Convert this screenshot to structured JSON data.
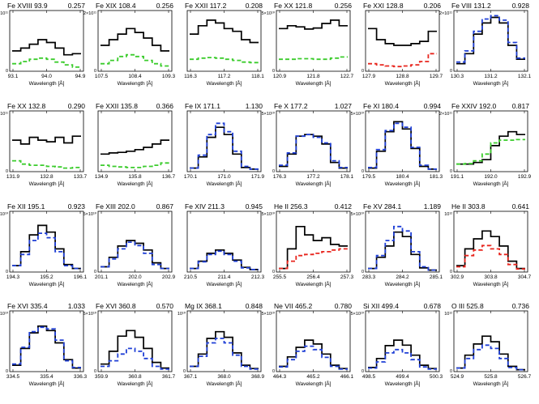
{
  "colors": {
    "model": "#000000",
    "obs_blue": "#1f3fd6",
    "obs_green": "#3bcc2c",
    "obs_red": "#e8261e"
  },
  "chart_data": [
    {
      "type": "line",
      "title": "Fe XVIII  93.9",
      "ratio": "0.257",
      "xticks": [
        "93.1",
        "94.0",
        "94.9"
      ],
      "xlabel": "Wavelength [Å]",
      "ytop": "5×10¹¹",
      "ybot": "0",
      "series": [
        {
          "role": "model",
          "color": "#000000",
          "values": [
            0.35,
            0.4,
            0.47,
            0.55,
            0.5,
            0.4,
            0.28,
            0.3
          ]
        },
        {
          "role": "obs",
          "color": "#3bcc2c",
          "values": [
            0.12,
            0.16,
            0.2,
            0.22,
            0.2,
            0.15,
            0.1,
            0.06
          ]
        }
      ]
    },
    {
      "type": "line",
      "title": "Fe XIX 108.4",
      "ratio": "0.256",
      "xticks": [
        "107.5",
        "108.4",
        "109.3"
      ],
      "xlabel": "Wavelength [Å]",
      "ytop": "2×10¹¹",
      "ybot": "0",
      "series": [
        {
          "role": "model",
          "color": "#000000",
          "values": [
            0.45,
            0.55,
            0.65,
            0.75,
            0.68,
            0.58,
            0.45,
            0.35
          ]
        },
        {
          "role": "obs",
          "color": "#3bcc2c",
          "values": [
            0.12,
            0.18,
            0.25,
            0.28,
            0.25,
            0.18,
            0.12,
            0.08
          ]
        }
      ]
    },
    {
      "type": "line",
      "title": "Fe XXII 117.2",
      "ratio": "0.208",
      "xticks": [
        "116.3",
        "117.2",
        "118.1"
      ],
      "xlabel": "Wavelength [Å]",
      "ytop": "",
      "ybot": "",
      "series": [
        {
          "role": "model",
          "color": "#000000",
          "values": [
            0.65,
            0.8,
            0.9,
            0.85,
            0.75,
            0.7,
            0.55,
            0.5
          ]
        },
        {
          "role": "obs",
          "color": "#3bcc2c",
          "values": [
            0.2,
            0.22,
            0.23,
            0.22,
            0.2,
            0.18,
            0.15,
            0.14
          ]
        }
      ]
    },
    {
      "type": "line",
      "title": "Fe XX 121.8",
      "ratio": "0.256",
      "xticks": [
        "120.9",
        "121.8",
        "122.7"
      ],
      "xlabel": "Wavelength [Å]",
      "ytop": "5×10¹⁰",
      "ybot": "0",
      "series": [
        {
          "role": "model",
          "color": "#000000",
          "values": [
            0.75,
            0.8,
            0.78,
            0.74,
            0.76,
            0.84,
            0.9,
            0.8
          ]
        },
        {
          "role": "obs",
          "color": "#3bcc2c",
          "values": [
            0.2,
            0.2,
            0.21,
            0.21,
            0.2,
            0.2,
            0.22,
            0.24
          ]
        }
      ]
    },
    {
      "type": "line",
      "title": "Fe XXI 128.8",
      "ratio": "0.206",
      "xticks": [
        "127.9",
        "128.8",
        "129.7"
      ],
      "xlabel": "Wavelength [Å]",
      "ytop": "",
      "ybot": "0",
      "series": [
        {
          "role": "model",
          "color": "#000000",
          "values": [
            0.75,
            0.55,
            0.48,
            0.45,
            0.45,
            0.48,
            0.52,
            0.7
          ]
        },
        {
          "role": "obs",
          "color": "#e8261e",
          "values": [
            0.12,
            0.1,
            0.08,
            0.07,
            0.08,
            0.1,
            0.16,
            0.3
          ]
        }
      ]
    },
    {
      "type": "line",
      "title": "Fe VIII 131.2",
      "ratio": "0.928",
      "xticks": [
        "130.3",
        "131.2",
        "132.1"
      ],
      "xlabel": "Wavelength [Å]",
      "ytop": "2×10¹¹",
      "ybot": "0",
      "series": [
        {
          "role": "model",
          "color": "#000000",
          "values": [
            0.12,
            0.3,
            0.65,
            0.85,
            0.95,
            0.85,
            0.45,
            0.2
          ]
        },
        {
          "role": "obs",
          "color": "#1f3fd6",
          "values": [
            0.15,
            0.35,
            0.7,
            0.92,
            0.98,
            0.9,
            0.5,
            0.22
          ]
        }
      ]
    },
    {
      "type": "line",
      "title": "Fe XX 132.8",
      "ratio": "0.290",
      "xticks": [
        "131.9",
        "132.8",
        "133.7"
      ],
      "xlabel": "Wavelength [Å]",
      "ytop": "10¹¹",
      "ybot": "0",
      "series": [
        {
          "role": "model",
          "color": "#000000",
          "values": [
            0.55,
            0.48,
            0.6,
            0.55,
            0.52,
            0.6,
            0.5,
            0.62
          ]
        },
        {
          "role": "obs",
          "color": "#3bcc2c",
          "values": [
            0.18,
            0.12,
            0.1,
            0.1,
            0.08,
            0.07,
            0.05,
            0.06
          ]
        }
      ]
    },
    {
      "type": "line",
      "title": "Fe XXII 135.8",
      "ratio": "0.366",
      "xticks": [
        "134.9",
        "135.8",
        "136.7"
      ],
      "xlabel": "Wavelength [Å]",
      "ytop": "",
      "ybot": "",
      "series": [
        {
          "role": "model",
          "color": "#000000",
          "values": [
            0.3,
            0.32,
            0.33,
            0.35,
            0.38,
            0.42,
            0.48,
            0.55
          ]
        },
        {
          "role": "obs",
          "color": "#3bcc2c",
          "values": [
            0.1,
            0.08,
            0.07,
            0.06,
            0.06,
            0.08,
            0.1,
            0.14
          ]
        }
      ]
    },
    {
      "type": "line",
      "title": "Fe IX 171.1",
      "ratio": "1.130",
      "xticks": [
        "170.1",
        "171.0",
        "171.9"
      ],
      "xlabel": "Wavelength [Å]",
      "ytop": "",
      "ybot": "",
      "series": [
        {
          "role": "model",
          "color": "#000000",
          "values": [
            0.05,
            0.25,
            0.6,
            0.78,
            0.65,
            0.3,
            0.06,
            0.03
          ]
        },
        {
          "role": "obs",
          "color": "#1f3fd6",
          "values": [
            0.05,
            0.28,
            0.65,
            0.85,
            0.7,
            0.35,
            0.08,
            0.03
          ]
        }
      ]
    },
    {
      "type": "line",
      "title": "Fe X 177.2",
      "ratio": "1.027",
      "xticks": [
        "176.3",
        "177.2",
        "178.1"
      ],
      "xlabel": "Wavelength [Å]",
      "ytop": "5×10¹⁰",
      "ybot": "0",
      "series": [
        {
          "role": "model",
          "color": "#000000",
          "values": [
            0.08,
            0.3,
            0.62,
            0.65,
            0.62,
            0.48,
            0.15,
            0.05
          ]
        },
        {
          "role": "obs",
          "color": "#1f3fd6",
          "values": [
            0.1,
            0.32,
            0.62,
            0.65,
            0.6,
            0.5,
            0.18,
            0.06
          ]
        }
      ]
    },
    {
      "type": "line",
      "title": "Fe XI 180.4",
      "ratio": "0.994",
      "xticks": [
        "179.5",
        "180.4",
        "181.3"
      ],
      "xlabel": "Wavelength [Å]",
      "ytop": "5×10¹⁰",
      "ybot": "0",
      "series": [
        {
          "role": "model",
          "color": "#000000",
          "values": [
            0.05,
            0.35,
            0.7,
            0.88,
            0.75,
            0.4,
            0.08,
            0.03
          ]
        },
        {
          "role": "obs",
          "color": "#1f3fd6",
          "values": [
            0.06,
            0.38,
            0.72,
            0.85,
            0.78,
            0.42,
            0.1,
            0.03
          ]
        }
      ]
    },
    {
      "type": "line",
      "title": "Fe XXIV 192.0",
      "ratio": "0.817",
      "xticks": [
        "191.1",
        "192.0",
        "192.9"
      ],
      "xlabel": "Wavelength [Å]",
      "ytop": "2×10¹¹",
      "ybot": "0",
      "series": [
        {
          "role": "model",
          "color": "#000000",
          "values": [
            0.12,
            0.12,
            0.15,
            0.2,
            0.45,
            0.62,
            0.7,
            0.65
          ]
        },
        {
          "role": "obs",
          "color": "#3bcc2c",
          "values": [
            0.12,
            0.13,
            0.18,
            0.3,
            0.5,
            0.55,
            0.55,
            0.56
          ]
        }
      ]
    },
    {
      "type": "line",
      "title": "Fe XII 195.1",
      "ratio": "0.923",
      "xticks": [
        "194.3",
        "195.2",
        "196.1"
      ],
      "xlabel": "Wavelength [Å]",
      "ytop": "5×10¹⁰",
      "ybot": "0",
      "series": [
        {
          "role": "model",
          "color": "#000000",
          "values": [
            0.1,
            0.35,
            0.65,
            0.82,
            0.7,
            0.4,
            0.12,
            0.05
          ]
        },
        {
          "role": "obs",
          "color": "#1f3fd6",
          "values": [
            0.1,
            0.3,
            0.55,
            0.68,
            0.6,
            0.35,
            0.1,
            0.05
          ]
        }
      ]
    },
    {
      "type": "line",
      "title": "Fe XIII 202.0",
      "ratio": "0.867",
      "xticks": [
        "201.1",
        "202.0",
        "202.9"
      ],
      "xlabel": "Wavelength [Å]",
      "ytop": "5×10¹⁰",
      "ybot": "0",
      "series": [
        {
          "role": "model",
          "color": "#000000",
          "values": [
            0.08,
            0.25,
            0.45,
            0.55,
            0.5,
            0.38,
            0.15,
            0.05
          ]
        },
        {
          "role": "obs",
          "color": "#1f3fd6",
          "values": [
            0.08,
            0.22,
            0.4,
            0.52,
            0.46,
            0.32,
            0.12,
            0.05
          ]
        }
      ]
    },
    {
      "type": "line",
      "title": "Fe XIV 211.3",
      "ratio": "0.945",
      "xticks": [
        "210.5",
        "211.4",
        "212.3"
      ],
      "xlabel": "Wavelength [Å]",
      "ytop": "",
      "ybot": "",
      "series": [
        {
          "role": "model",
          "color": "#000000",
          "values": [
            0.05,
            0.18,
            0.32,
            0.38,
            0.32,
            0.2,
            0.07,
            0.03
          ]
        },
        {
          "role": "obs",
          "color": "#1f3fd6",
          "values": [
            0.05,
            0.17,
            0.3,
            0.36,
            0.3,
            0.18,
            0.06,
            0.03
          ]
        }
      ]
    },
    {
      "type": "line",
      "title": "He II 256.3",
      "ratio": "0.412",
      "xticks": [
        "255.5",
        "256.4",
        "257.3"
      ],
      "xlabel": "Wavelength [Å]",
      "ytop": "5×10¹⁰",
      "ybot": "0",
      "series": [
        {
          "role": "model",
          "color": "#000000",
          "values": [
            0.05,
            0.4,
            0.8,
            0.65,
            0.55,
            0.6,
            0.48,
            0.45
          ]
        },
        {
          "role": "obs",
          "color": "#e8261e",
          "values": [
            0.05,
            0.18,
            0.28,
            0.3,
            0.32,
            0.35,
            0.38,
            0.4
          ]
        }
      ]
    },
    {
      "type": "line",
      "title": "Fe XV 284.1",
      "ratio": "1.189",
      "xticks": [
        "283.3",
        "284.2",
        "285.1"
      ],
      "xlabel": "Wavelength [Å]",
      "ytop": "5×10¹⁰",
      "ybot": "0",
      "series": [
        {
          "role": "model",
          "color": "#000000",
          "values": [
            0.05,
            0.25,
            0.45,
            0.7,
            0.62,
            0.3,
            0.06,
            0.02
          ]
        },
        {
          "role": "obs",
          "color": "#1f3fd6",
          "values": [
            0.05,
            0.28,
            0.55,
            0.8,
            0.72,
            0.35,
            0.08,
            0.02
          ]
        }
      ]
    },
    {
      "type": "line",
      "title": "He II 303.8",
      "ratio": "0.641",
      "xticks": [
        "302.9",
        "303.8",
        "304.7"
      ],
      "xlabel": "Wavelength [Å]",
      "ytop": "10¹²",
      "ybot": "0",
      "series": [
        {
          "role": "model",
          "color": "#000000",
          "values": [
            0.1,
            0.4,
            0.58,
            0.72,
            0.62,
            0.45,
            0.18,
            0.05
          ]
        },
        {
          "role": "obs",
          "color": "#e8261e",
          "values": [
            0.08,
            0.28,
            0.38,
            0.46,
            0.4,
            0.3,
            0.12,
            0.04
          ]
        }
      ]
    },
    {
      "type": "line",
      "title": "Fe XVI 335.4",
      "ratio": "1.033",
      "xticks": [
        "334.5",
        "335.4",
        "336.3"
      ],
      "xlabel": "Wavelength [Å]",
      "ytop": "5×10¹⁰",
      "ybot": "0",
      "series": [
        {
          "role": "model",
          "color": "#000000",
          "values": [
            0.1,
            0.4,
            0.68,
            0.8,
            0.72,
            0.5,
            0.2,
            0.05
          ]
        },
        {
          "role": "obs",
          "color": "#1f3fd6",
          "values": [
            0.12,
            0.42,
            0.7,
            0.78,
            0.75,
            0.55,
            0.18,
            0.06
          ]
        }
      ]
    },
    {
      "type": "line",
      "title": "Fe XVI 360.8",
      "ratio": "0.570",
      "xticks": [
        "359.9",
        "360.8",
        "361.7"
      ],
      "xlabel": "Wavelength [Å]",
      "ytop": "5×10¹⁰",
      "ybot": "0",
      "series": [
        {
          "role": "model",
          "color": "#000000",
          "values": [
            0.12,
            0.35,
            0.62,
            0.72,
            0.6,
            0.4,
            0.15,
            0.05
          ]
        },
        {
          "role": "obs",
          "color": "#1f3fd6",
          "values": [
            0.08,
            0.18,
            0.3,
            0.4,
            0.35,
            0.22,
            0.08,
            0.03
          ]
        }
      ]
    },
    {
      "type": "line",
      "title": "Mg IX 368.1",
      "ratio": "0.848",
      "xticks": [
        "367.1",
        "368.0",
        "368.9"
      ],
      "xlabel": "Wavelength [Å]",
      "ytop": "10¹⁰",
      "ybot": "0",
      "series": [
        {
          "role": "model",
          "color": "#000000",
          "values": [
            0.08,
            0.3,
            0.58,
            0.7,
            0.6,
            0.32,
            0.1,
            0.04
          ]
        },
        {
          "role": "obs",
          "color": "#1f3fd6",
          "values": [
            0.08,
            0.26,
            0.5,
            0.58,
            0.5,
            0.28,
            0.08,
            0.03
          ]
        }
      ]
    },
    {
      "type": "line",
      "title": "Ne VII 465.2",
      "ratio": "0.780",
      "xticks": [
        "464.3",
        "465.2",
        "466.1"
      ],
      "xlabel": "Wavelength [Å]",
      "ytop": "5×10¹⁰",
      "ybot": "0",
      "series": [
        {
          "role": "model",
          "color": "#000000",
          "values": [
            0.08,
            0.25,
            0.42,
            0.55,
            0.48,
            0.3,
            0.1,
            0.04
          ]
        },
        {
          "role": "obs",
          "color": "#1f3fd6",
          "values": [
            0.07,
            0.2,
            0.35,
            0.44,
            0.38,
            0.24,
            0.08,
            0.03
          ]
        }
      ]
    },
    {
      "type": "line",
      "title": "Si XII 499.4",
      "ratio": "0.678",
      "xticks": [
        "498.5",
        "499.4",
        "500.3"
      ],
      "xlabel": "Wavelength [Å]",
      "ytop": "5×10¹⁰",
      "ybot": "0",
      "series": [
        {
          "role": "model",
          "color": "#000000",
          "values": [
            0.06,
            0.22,
            0.45,
            0.55,
            0.46,
            0.28,
            0.1,
            0.04
          ]
        },
        {
          "role": "obs",
          "color": "#1f3fd6",
          "values": [
            0.05,
            0.16,
            0.32,
            0.38,
            0.32,
            0.2,
            0.07,
            0.03
          ]
        }
      ]
    },
    {
      "type": "line",
      "title": "O III 525.8",
      "ratio": "0.736",
      "xticks": [
        "524.9",
        "525.8",
        "526.7"
      ],
      "xlabel": "Wavelength [Å]",
      "ytop": "10¹²",
      "ybot": "0",
      "series": [
        {
          "role": "model",
          "color": "#000000",
          "values": [
            0.05,
            0.28,
            0.48,
            0.62,
            0.52,
            0.3,
            0.08,
            0.02
          ]
        },
        {
          "role": "obs",
          "color": "#1f3fd6",
          "values": [
            0.05,
            0.22,
            0.38,
            0.46,
            0.4,
            0.22,
            0.06,
            0.02
          ]
        }
      ]
    }
  ]
}
